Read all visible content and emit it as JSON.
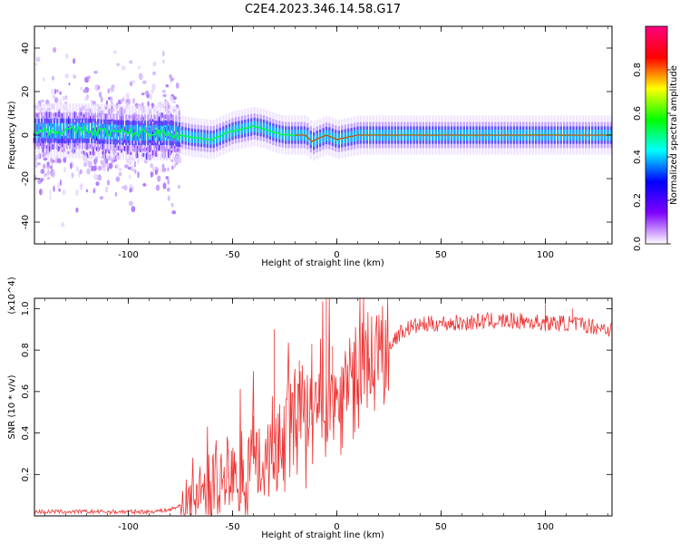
{
  "title": "C2E4.2023.346.14.58.G17",
  "chart_data": [
    {
      "type": "heatmap",
      "name": "spectrogram",
      "xlabel": "Height of straight line (km)",
      "ylabel": "Frequency (Hz)",
      "xlim": [
        -145,
        132
      ],
      "ylim": [
        -50,
        50
      ],
      "xticks": [
        -100,
        -50,
        0,
        50,
        100
      ],
      "yticks": [
        -40,
        -20,
        0,
        20,
        40
      ],
      "xtick_labels": [
        "-100",
        "-50",
        "0",
        "50",
        "100"
      ],
      "ytick_labels": [
        "-40",
        "-20",
        "0",
        "20",
        "40"
      ],
      "colorbar": {
        "label": "Normalized spectral amplitude",
        "range": [
          0,
          1
        ],
        "ticks": [
          0.0,
          0.2,
          0.4,
          0.6,
          0.8
        ],
        "tick_labels": [
          "0.0",
          "0.2",
          "0.4",
          "0.6",
          "0.8"
        ],
        "colormap": [
          "#ffffff",
          "#7f00ff",
          "#0000ff",
          "#00ffff",
          "#00ff00",
          "#ffff00",
          "#ff0000",
          "#ff0080"
        ]
      },
      "ridge": {
        "x": [
          -145,
          -120,
          -100,
          -80,
          -75,
          -70,
          -60,
          -55,
          -50,
          -45,
          -40,
          -35,
          -30,
          -25,
          -20,
          -15,
          -12,
          -10,
          -5,
          0,
          5,
          10,
          20,
          40,
          60,
          80,
          100,
          120,
          132
        ],
        "y": [
          2,
          2,
          1,
          1,
          0,
          -1,
          -2,
          0,
          2,
          3,
          4,
          3,
          1,
          0,
          0,
          0,
          -3,
          -2,
          0,
          -2,
          -1,
          0,
          0,
          0,
          0,
          0,
          0,
          0,
          0
        ]
      },
      "noise_region": [
        -145,
        -75
      ]
    },
    {
      "type": "line",
      "name": "snr",
      "xlabel": "Height of straight line (km)",
      "ylabel": "SNR (10 * v/v)",
      "scale_note": "(x10^4)",
      "xlim": [
        -145,
        132
      ],
      "ylim": [
        0,
        1.05
      ],
      "xticks": [
        -100,
        -50,
        0,
        50,
        100
      ],
      "yticks": [
        0.2,
        0.4,
        0.6,
        0.8,
        1.0
      ],
      "xtick_labels": [
        "-100",
        "-50",
        "0",
        "50",
        "100"
      ],
      "ytick_labels": [
        "0.2",
        "0.4",
        "0.6",
        "0.8",
        "1.0"
      ],
      "color": "#ee3333",
      "series": [
        {
          "x": [
            -145,
            -110,
            -90,
            -80,
            -75,
            -70,
            -65,
            -60,
            -55,
            -50,
            -45,
            -40,
            -35,
            -30,
            -25,
            -20,
            -15,
            -10,
            -5,
            0,
            5,
            10,
            15,
            20,
            25,
            30,
            35,
            40,
            50,
            60,
            70,
            80,
            90,
            100,
            110,
            120,
            132
          ],
          "y": [
            0.02,
            0.02,
            0.02,
            0.03,
            0.05,
            0.08,
            0.12,
            0.15,
            0.17,
            0.19,
            0.21,
            0.25,
            0.3,
            0.35,
            0.38,
            0.4,
            0.42,
            0.45,
            0.5,
            0.55,
            0.6,
            0.66,
            0.72,
            0.78,
            0.82,
            0.88,
            0.91,
            0.92,
            0.93,
            0.93,
            0.94,
            0.94,
            0.94,
            0.93,
            0.93,
            0.92,
            0.9
          ],
          "spikes": [
            {
              "x": -52,
              "y": 0.32
            },
            {
              "x": -40,
              "y": 0.48
            },
            {
              "x": -30,
              "y": 0.9
            },
            {
              "x": -18,
              "y": 0.75
            },
            {
              "x": -12,
              "y": 0.83
            },
            {
              "x": -5,
              "y": 1.06
            },
            {
              "x": -2,
              "y": 0.82
            },
            {
              "x": 100,
              "y": 1.02
            },
            {
              "x": 113,
              "y": 1.0
            }
          ]
        }
      ]
    }
  ]
}
